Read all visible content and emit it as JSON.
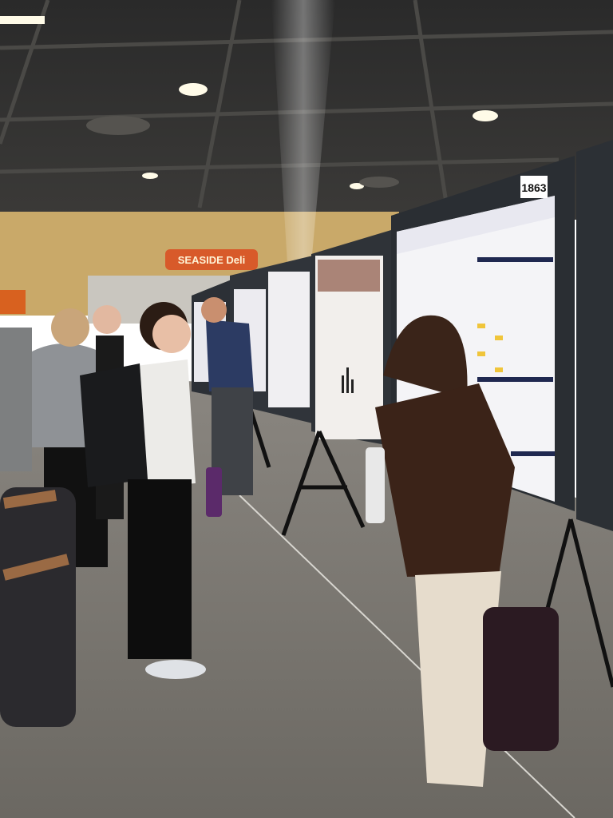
{
  "signs": {
    "booth_number": "1863",
    "restaurant": "SEASIDE Deli"
  }
}
